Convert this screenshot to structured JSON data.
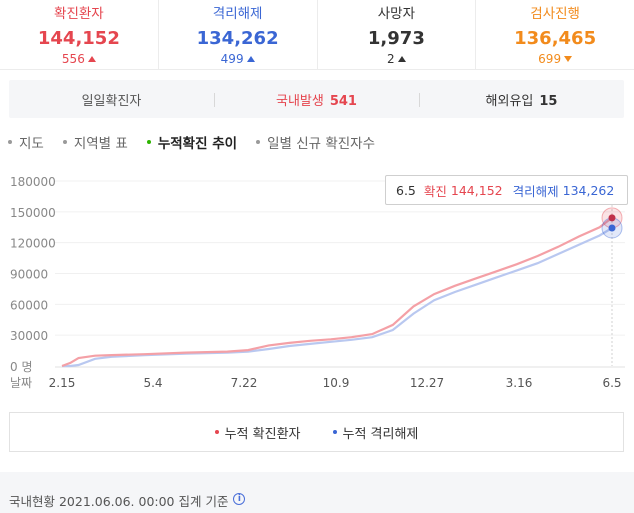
{
  "stats": [
    {
      "label": "확진환자",
      "value": "144,152",
      "delta": "556",
      "direction": "up",
      "color": "#e5464f"
    },
    {
      "label": "격리해제",
      "value": "134,262",
      "delta": "499",
      "direction": "up",
      "color": "#3a66d4"
    },
    {
      "label": "사망자",
      "value": "1,973",
      "delta": "2",
      "direction": "up",
      "color": "#333333"
    },
    {
      "label": "검사진행",
      "value": "136,465",
      "delta": "699",
      "direction": "down",
      "color": "#f28b1c"
    }
  ],
  "daily": {
    "tab1_label": "일일확진자",
    "tab2_label": "국내발생",
    "tab2_value": "541",
    "tab3_label": "해외유입",
    "tab3_value": "15"
  },
  "tabs": [
    {
      "label": "지도",
      "active": false
    },
    {
      "label": "지역별 표",
      "active": false
    },
    {
      "label": "누적확진 추이",
      "active": true
    },
    {
      "label": "일별 신규 확진자수",
      "active": false
    }
  ],
  "tooltip": {
    "date": "6.5",
    "confirmed_label": "확진",
    "confirmed_value": "144,152",
    "released_label": "격리해제",
    "released_value": "134,262"
  },
  "chart_data": {
    "type": "line",
    "x": [
      "2.15",
      "5.4",
      "7.22",
      "10.9",
      "12.27",
      "3.16",
      "6.5"
    ],
    "xlabel": "날짜",
    "y_ticks": [
      "180000",
      "150000",
      "120000",
      "90000",
      "60000",
      "30000",
      "0 명"
    ],
    "ylim": [
      0,
      180000
    ],
    "grid": true,
    "series": [
      {
        "name": "누적 확진환자",
        "color": "#f4a0a6",
        "values": [
          [
            0,
            30
          ],
          [
            4,
            3000
          ],
          [
            8,
            7800
          ],
          [
            16,
            10000
          ],
          [
            24,
            10600
          ],
          [
            40,
            11500
          ],
          [
            60,
            13000
          ],
          [
            80,
            14000
          ],
          [
            90,
            15500
          ],
          [
            100,
            20000
          ],
          [
            110,
            22500
          ],
          [
            120,
            24500
          ],
          [
            130,
            26000
          ],
          [
            140,
            28000
          ],
          [
            150,
            31000
          ],
          [
            160,
            40000
          ],
          [
            170,
            58000
          ],
          [
            180,
            70000
          ],
          [
            190,
            78000
          ],
          [
            200,
            85000
          ],
          [
            210,
            92000
          ],
          [
            220,
            99000
          ],
          [
            230,
            107000
          ],
          [
            240,
            116000
          ],
          [
            250,
            126000
          ],
          [
            260,
            135000
          ],
          [
            266,
            144152
          ]
        ]
      },
      {
        "name": "누적 격리해제",
        "color": "#b9c8f0",
        "values": [
          [
            0,
            0
          ],
          [
            4,
            0
          ],
          [
            8,
            1000
          ],
          [
            16,
            7000
          ],
          [
            24,
            9000
          ],
          [
            40,
            10500
          ],
          [
            60,
            12000
          ],
          [
            80,
            13000
          ],
          [
            90,
            14000
          ],
          [
            100,
            16500
          ],
          [
            110,
            19500
          ],
          [
            120,
            21500
          ],
          [
            130,
            23500
          ],
          [
            140,
            25500
          ],
          [
            150,
            28000
          ],
          [
            160,
            35000
          ],
          [
            170,
            51000
          ],
          [
            180,
            64000
          ],
          [
            190,
            72000
          ],
          [
            200,
            79000
          ],
          [
            210,
            86000
          ],
          [
            220,
            93000
          ],
          [
            230,
            100000
          ],
          [
            240,
            109000
          ],
          [
            250,
            118000
          ],
          [
            260,
            127000
          ],
          [
            266,
            134262
          ]
        ]
      }
    ]
  },
  "legend": [
    {
      "label": "누적 확진환자",
      "color": "#e5464f"
    },
    {
      "label": "누적 격리해제",
      "color": "#3a66d4"
    }
  ],
  "footer": {
    "text": "국내현황 2021.06.06. 00:00 집계 기준"
  }
}
